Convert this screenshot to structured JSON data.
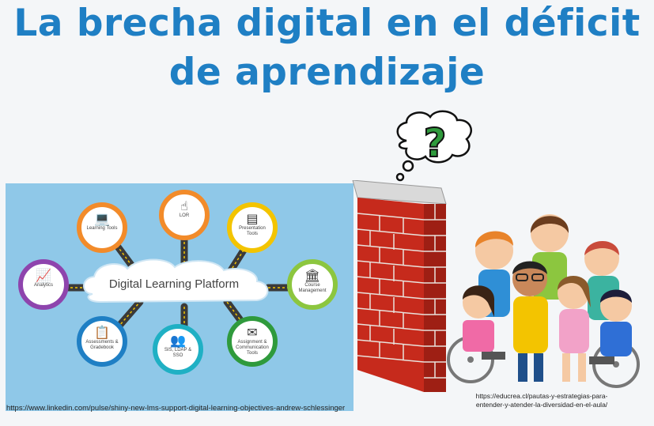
{
  "title_line1": "La brecha digital en el déficit",
  "title_line2": "de aprendizaje",
  "platform": {
    "center_label": "Digital Learning Platform",
    "nodes": [
      {
        "label": "Learning Tools",
        "icon": "laptop-icon"
      },
      {
        "label": "LOR",
        "icon": "pointer-hand-icon"
      },
      {
        "label": "Presentation Tools",
        "icon": "presentation-board-icon"
      },
      {
        "label": "Analytics",
        "icon": "chart-icon"
      },
      {
        "label": "Course Management",
        "icon": "building-icon"
      },
      {
        "label": "Assessments & Gradebook",
        "icon": "clipboard-icon"
      },
      {
        "label": "SIS, LDAP & SSO",
        "icon": "people-network-icon"
      },
      {
        "label": "Assignment & Communication Tools",
        "icon": "envelope-icon"
      }
    ]
  },
  "source_left": "https://www.linkedin.com/pulse/shiny-new-lms-support-digital-learning-objectives-andrew-schlessinger",
  "source_right": "https://educrea.cl/pautas-y-estrategias-para-entender-y-atender-la-diversidad-en-el-aula/",
  "thought_symbol": "?",
  "colors": {
    "title": "#1f7fc4",
    "brick": "#c62a1c",
    "question": "#2f9a3c"
  }
}
